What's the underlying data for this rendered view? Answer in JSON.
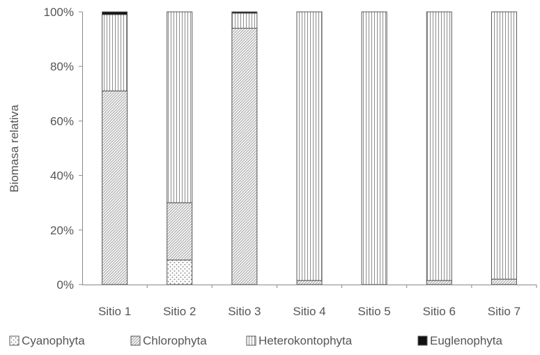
{
  "chart_data": {
    "type": "bar",
    "stacked": true,
    "percent": true,
    "ylabel": "Biomasa relativa",
    "xlabel": "",
    "ylim": [
      0,
      100
    ],
    "yticks": [
      0,
      20,
      40,
      60,
      80,
      100
    ],
    "ytick_labels": [
      "0%",
      "20%",
      "40%",
      "60%",
      "80%",
      "100%"
    ],
    "categories": [
      "Sitio 1",
      "Sitio 2",
      "Sitio 3",
      "Sitio 4",
      "Sitio 5",
      "Sitio 6",
      "Sitio 7"
    ],
    "series": [
      {
        "name": "Cyanophyta",
        "pattern": "dots",
        "values": [
          0,
          9,
          0,
          0,
          0,
          0,
          0
        ]
      },
      {
        "name": "Chlorophyta",
        "pattern": "diagonal",
        "values": [
          71,
          21,
          94,
          1.5,
          0,
          1.5,
          2
        ]
      },
      {
        "name": "Heterokontophyta",
        "pattern": "vertical",
        "values": [
          28,
          70,
          5.5,
          98.5,
          100,
          98.5,
          98
        ]
      },
      {
        "name": "Euglenophyta",
        "pattern": "solid",
        "values": [
          1,
          0,
          0.5,
          0,
          0,
          0,
          0
        ]
      }
    ],
    "legend_position": "bottom",
    "grid": false
  }
}
